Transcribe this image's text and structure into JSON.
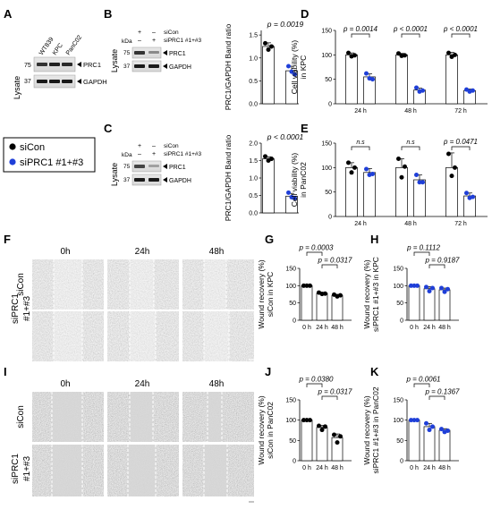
{
  "panel_letters": [
    "A",
    "B",
    "C",
    "D",
    "E",
    "F",
    "G",
    "H",
    "I",
    "J",
    "K"
  ],
  "legend": {
    "items": [
      {
        "label": "siCon",
        "color": "#000000"
      },
      {
        "label": "siPRC1 #1+#3",
        "color": "#1f3fd8"
      }
    ]
  },
  "blots": {
    "A": {
      "side": "Lysate",
      "kda": [
        "75",
        "37"
      ],
      "lanes": [
        "WT839",
        "KPC",
        "PanC02"
      ],
      "bands": [
        "PRC1",
        "GAPDH"
      ]
    },
    "B": {
      "side": "Lysate",
      "kda_label": "kDa",
      "kda": [
        "75",
        "37"
      ],
      "lane_marks": [
        [
          "+",
          "–"
        ],
        [
          "–",
          "+"
        ]
      ],
      "lane_labels": [
        "siCon",
        "siPRC1 #1+#3"
      ],
      "bands": [
        "PRC1",
        "GAPDH"
      ]
    },
    "C": {
      "side": "Lysate",
      "kda_label": "kDa",
      "kda": [
        "75",
        "37"
      ],
      "lane_marks": [
        [
          "+",
          "–"
        ],
        [
          "–",
          "+"
        ]
      ],
      "lane_labels": [
        "siCon",
        "siPRC1 #1+#3"
      ],
      "bands": [
        "PRC1",
        "GAPDH"
      ]
    }
  },
  "wound": {
    "F": {
      "times": [
        "0h",
        "24h",
        "48h"
      ],
      "rows": [
        "siCon",
        "siPRC1\n#1+#3"
      ]
    },
    "I": {
      "times": [
        "0h",
        "24h",
        "48h"
      ],
      "rows": [
        "siCon",
        "siPRC1\n#1+#3"
      ]
    }
  },
  "chart_data": [
    {
      "panel": "B",
      "type": "bar",
      "ylabel": "PRC1/GAPDH Band ratio",
      "ylim": [
        0,
        1.6
      ],
      "categories": [
        "siCon",
        "siPRC1 #1+#3"
      ],
      "values": [
        1.25,
        0.72
      ],
      "points": [
        [
          1.32,
          1.18,
          1.25
        ],
        [
          0.82,
          0.7,
          0.64
        ]
      ],
      "sd": [
        0.08,
        0.1
      ],
      "colors": [
        "#000000",
        "#1f3fd8"
      ],
      "annotations": [
        {
          "text": "p = 0.0019",
          "from": 0,
          "to": 1
        }
      ]
    },
    {
      "panel": "C",
      "type": "bar",
      "ylabel": "PRC1/GAPDH Band ratio",
      "ylim": [
        0,
        2.0
      ],
      "categories": [
        "siCon",
        "siPRC1 #1+#3"
      ],
      "values": [
        1.55,
        0.48
      ],
      "points": [
        [
          1.62,
          1.5,
          1.55
        ],
        [
          0.58,
          0.45,
          0.42
        ]
      ],
      "sd": [
        0.06,
        0.08
      ],
      "colors": [
        "#000000",
        "#1f3fd8"
      ],
      "annotations": [
        {
          "text": "p < 0.0001",
          "from": 0,
          "to": 1
        }
      ]
    },
    {
      "panel": "D",
      "type": "bar",
      "ylabel": "Cell viability (%)\nin KPC",
      "yticks": [
        "0",
        "50",
        "100",
        "150"
      ],
      "ylim": [
        0,
        150
      ],
      "categories": [
        "24 h",
        "48 h",
        "72 h"
      ],
      "series": [
        {
          "values": [
            100,
            100,
            100
          ],
          "points": [
            [
              104,
              97,
              99
            ],
            [
              103,
              98,
              99
            ],
            [
              104,
              96,
              100
            ]
          ],
          "sd": [
            4,
            3,
            5
          ],
          "color": "#000000"
        },
        {
          "values": [
            55,
            28,
            27
          ],
          "points": [
            [
              62,
              52,
              50
            ],
            [
              33,
              25,
              27
            ],
            [
              29,
              25,
              27
            ]
          ],
          "sd": [
            6,
            4,
            3
          ],
          "color": "#1f3fd8"
        }
      ],
      "annotations": [
        {
          "text": "p = 0.0014",
          "group": 0
        },
        {
          "text": "p < 0.0001",
          "group": 1
        },
        {
          "text": "p < 0.0001",
          "group": 2
        }
      ]
    },
    {
      "panel": "E",
      "type": "bar",
      "ylabel": "Cell viability (%)\nin PanC02",
      "yticks": [
        "0",
        "50",
        "100",
        "150"
      ],
      "ylim": [
        0,
        150
      ],
      "categories": [
        "24 h",
        "48 h",
        "72 h"
      ],
      "series": [
        {
          "values": [
            100,
            100,
            100
          ],
          "points": [
            [
              110,
              90,
              100
            ],
            [
              118,
              80,
              102
            ],
            [
              128,
              83,
              100
            ]
          ],
          "sd": [
            10,
            18,
            30
          ],
          "color": "#000000"
        },
        {
          "values": [
            90,
            75,
            42
          ],
          "points": [
            [
              97,
              85,
              87
            ],
            [
              85,
              70,
              70
            ],
            [
              48,
              38,
              40
            ]
          ],
          "sd": [
            8,
            10,
            6
          ],
          "color": "#1f3fd8"
        }
      ],
      "annotations": [
        {
          "text": "n.s",
          "group": 0
        },
        {
          "text": "n.s",
          "group": 1
        },
        {
          "text": "p = 0.0471",
          "group": 2
        }
      ]
    },
    {
      "panel": "G",
      "type": "bar",
      "ylabel": "Wound recovery (%)\nsiCon in KPC",
      "yticks": [
        "0",
        "50",
        "100",
        "150"
      ],
      "ylim": [
        0,
        150
      ],
      "categories": [
        "0 h",
        "24 h",
        "48 h"
      ],
      "values": [
        100,
        78,
        72
      ],
      "points": [
        [
          100,
          100,
          100
        ],
        [
          80,
          76,
          77
        ],
        [
          74,
          69,
          72
        ]
      ],
      "sd": [
        0,
        3,
        3
      ],
      "color": "#000000",
      "annotations": [
        {
          "text": "p = 0.0003",
          "from": 0,
          "to": 1,
          "level": 2
        },
        {
          "text": "p = 0.0317",
          "from": 1,
          "to": 2,
          "level": 1
        }
      ]
    },
    {
      "panel": "H",
      "type": "bar",
      "ylabel": "Wound recovery (%)\nsiPRC1 #1+#3 in KPC",
      "yticks": [
        "0",
        "50",
        "100",
        "150"
      ],
      "ylim": [
        0,
        150
      ],
      "categories": [
        "0 h",
        "24 h",
        "48 h"
      ],
      "values": [
        100,
        91,
        88
      ],
      "points": [
        [
          100,
          100,
          100
        ],
        [
          96,
          84,
          93
        ],
        [
          93,
          82,
          90
        ]
      ],
      "sd": [
        0,
        6,
        5
      ],
      "color": "#1f3fd8",
      "annotations": [
        {
          "text": "p = 0.1112",
          "from": 0,
          "to": 1,
          "level": 2
        },
        {
          "text": "p = 0.9187",
          "from": 1,
          "to": 2,
          "level": 1
        }
      ]
    },
    {
      "panel": "J",
      "type": "bar",
      "ylabel": "Wound recovery (%)\nsiCon in PanC02",
      "yticks": [
        "0",
        "50",
        "100",
        "150"
      ],
      "ylim": [
        0,
        150
      ],
      "categories": [
        "0 h",
        "24 h",
        "48 h"
      ],
      "values": [
        100,
        82,
        57
      ],
      "points": [
        [
          100,
          100,
          100
        ],
        [
          86,
          76,
          84
        ],
        [
          64,
          45,
          60
        ]
      ],
      "sd": [
        0,
        5,
        9
      ],
      "color": "#000000",
      "annotations": [
        {
          "text": "p = 0.0380",
          "from": 0,
          "to": 1,
          "level": 2
        },
        {
          "text": "p = 0.0317",
          "from": 1,
          "to": 2,
          "level": 1
        }
      ]
    },
    {
      "panel": "K",
      "type": "bar",
      "ylabel": "Wound recovery (%)\nsiPRC1 #1+#3 in PanC02",
      "yticks": [
        "0",
        "50",
        "100",
        "150"
      ],
      "ylim": [
        0,
        150
      ],
      "categories": [
        "0 h",
        "24 h",
        "48 h"
      ],
      "values": [
        100,
        84,
        75
      ],
      "points": [
        [
          100,
          100,
          100
        ],
        [
          92,
          76,
          84
        ],
        [
          78,
          71,
          74
        ]
      ],
      "sd": [
        0,
        8,
        4
      ],
      "color": "#1f3fd8",
      "annotations": [
        {
          "text": "p = 0.0061",
          "from": 0,
          "to": 1,
          "level": 2
        },
        {
          "text": "p = 0.1367",
          "from": 1,
          "to": 2,
          "level": 1
        }
      ]
    }
  ]
}
